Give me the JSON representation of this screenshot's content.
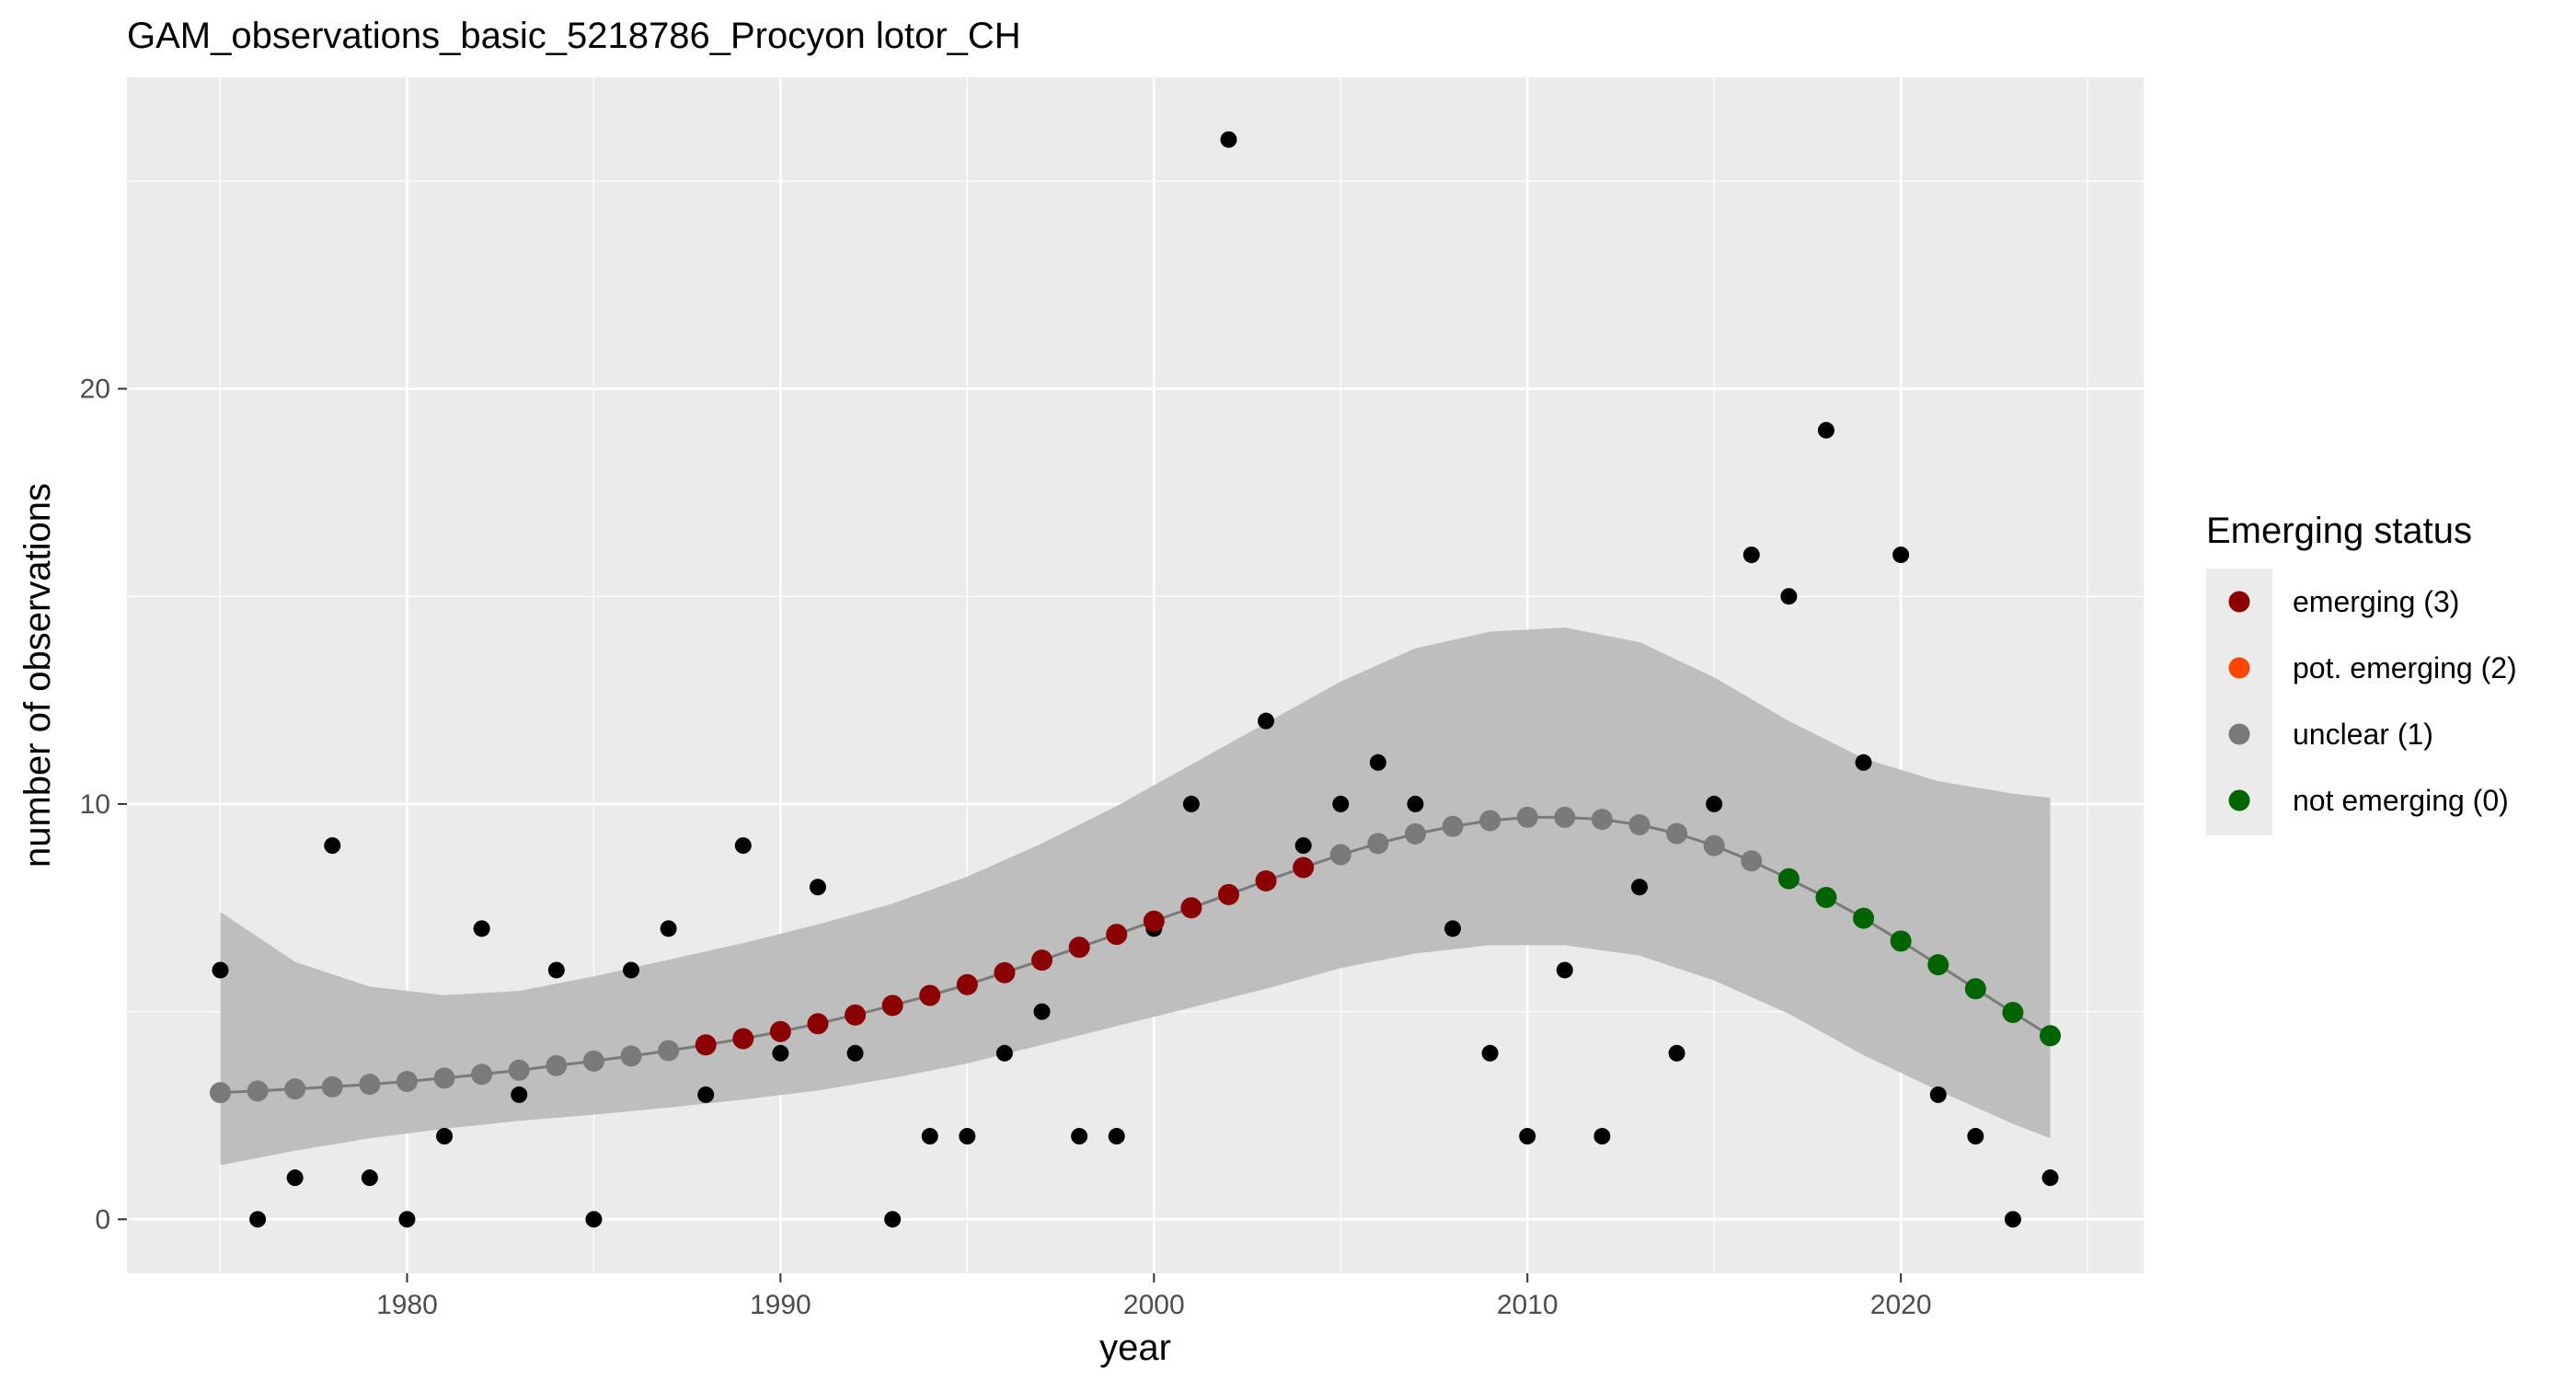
{
  "chart_data": {
    "type": "scatter",
    "title": "GAM_observations_basic_5218786_Procyon lotor_CH",
    "xlabel": "year",
    "ylabel": "number of observations",
    "xlim": [
      1972.5,
      2026.5
    ],
    "ylim": [
      -1.3,
      27.5
    ],
    "x_ticks": [
      1980,
      1990,
      2000,
      2010,
      2020
    ],
    "y_ticks": [
      0,
      10,
      20
    ],
    "grid": true,
    "legend_position": "right",
    "legend": {
      "title": "Emerging status",
      "entries": [
        {
          "label": "emerging (3)",
          "color": "#8b0000"
        },
        {
          "label": "pot. emerging (2)",
          "color": "#ff4500"
        },
        {
          "label": "unclear (1)",
          "color": "#7a7a7a"
        },
        {
          "label": "not emerging (0)",
          "color": "#006400"
        }
      ]
    },
    "colors": {
      "panel_background": "#ebebeb",
      "grid_major": "#ffffff",
      "ribbon": "#bebebe",
      "fit_line": "#7a7a7a",
      "observed_point": "#000000",
      "emerging": "#8b0000",
      "pot_emerging": "#ff4500",
      "unclear": "#7a7a7a",
      "not_emerging": "#006400"
    },
    "observations": {
      "x": [
        1975,
        1976,
        1977,
        1978,
        1979,
        1980,
        1981,
        1982,
        1983,
        1984,
        1985,
        1986,
        1987,
        1988,
        1989,
        1990,
        1991,
        1992,
        1993,
        1994,
        1995,
        1996,
        1997,
        1998,
        1999,
        2000,
        2001,
        2002,
        2003,
        2004,
        2005,
        2006,
        2007,
        2008,
        2009,
        2010,
        2011,
        2012,
        2013,
        2014,
        2015,
        2016,
        2017,
        2018,
        2019,
        2020,
        2021,
        2022,
        2023,
        2024
      ],
      "y": [
        6,
        0,
        1,
        9,
        1,
        0,
        2,
        7,
        3,
        6,
        0,
        6,
        7,
        3,
        9,
        4,
        8,
        4,
        0,
        2,
        2,
        4,
        5,
        2,
        2,
        7,
        10,
        26,
        12,
        9,
        10,
        11,
        10,
        7,
        4,
        2,
        6,
        2,
        8,
        4,
        10,
        16,
        15,
        19,
        11,
        16,
        3,
        2,
        0,
        1
      ]
    },
    "fitted": {
      "x": [
        1975,
        1976,
        1977,
        1978,
        1979,
        1980,
        1981,
        1982,
        1983,
        1984,
        1985,
        1986,
        1987,
        1988,
        1989,
        1990,
        1991,
        1992,
        1993,
        1994,
        1995,
        1996,
        1997,
        1998,
        1999,
        2000,
        2001,
        2002,
        2003,
        2004,
        2005,
        2006,
        2007,
        2008,
        2009,
        2010,
        2011,
        2012,
        2013,
        2014,
        2015,
        2016,
        2017,
        2018,
        2019,
        2020,
        2021,
        2022,
        2023,
        2024
      ],
      "y": [
        3.05,
        3.09,
        3.14,
        3.19,
        3.25,
        3.32,
        3.4,
        3.49,
        3.59,
        3.7,
        3.81,
        3.93,
        4.06,
        4.2,
        4.35,
        4.52,
        4.71,
        4.92,
        5.15,
        5.39,
        5.65,
        5.94,
        6.24,
        6.55,
        6.86,
        7.18,
        7.5,
        7.82,
        8.15,
        8.47,
        8.78,
        9.05,
        9.28,
        9.46,
        9.6,
        9.68,
        9.68,
        9.63,
        9.5,
        9.29,
        9.0,
        8.63,
        8.2,
        7.75,
        7.25,
        6.7,
        6.13,
        5.55,
        4.98,
        4.42
      ],
      "status": [
        1,
        1,
        1,
        1,
        1,
        1,
        1,
        1,
        1,
        1,
        1,
        1,
        1,
        3,
        3,
        3,
        3,
        3,
        3,
        3,
        3,
        3,
        3,
        3,
        3,
        3,
        3,
        3,
        3,
        3,
        1,
        1,
        1,
        1,
        1,
        1,
        1,
        1,
        1,
        1,
        1,
        1,
        0,
        0,
        0,
        0,
        0,
        0,
        0,
        0
      ]
    },
    "confidence_band": {
      "x": [
        1975,
        1977,
        1979,
        1981,
        1983,
        1985,
        1987,
        1989,
        1991,
        1993,
        1995,
        1997,
        1999,
        2001,
        2003,
        2005,
        2007,
        2009,
        2011,
        2013,
        2015,
        2017,
        2019,
        2021,
        2023,
        2024
      ],
      "lower": [
        1.3,
        1.65,
        1.95,
        2.18,
        2.37,
        2.52,
        2.69,
        2.88,
        3.1,
        3.4,
        3.75,
        4.2,
        4.65,
        5.1,
        5.55,
        6.05,
        6.4,
        6.6,
        6.6,
        6.35,
        5.75,
        4.95,
        3.95,
        3.1,
        2.3,
        1.95
      ],
      "upper": [
        7.4,
        6.2,
        5.6,
        5.4,
        5.5,
        5.85,
        6.25,
        6.65,
        7.1,
        7.6,
        8.25,
        9.05,
        9.95,
        10.95,
        11.95,
        12.95,
        13.75,
        14.15,
        14.25,
        13.9,
        13.05,
        12.0,
        11.1,
        10.55,
        10.25,
        10.15
      ]
    }
  }
}
